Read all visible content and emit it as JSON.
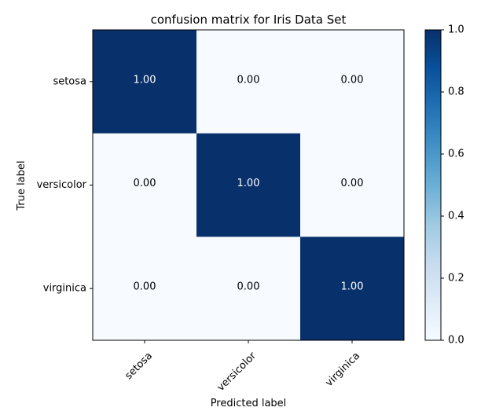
{
  "chart_data": {
    "type": "heatmap",
    "title": "confusion matrix for Iris Data Set",
    "xlabel": "Predicted label",
    "ylabel": "True label",
    "x_categories": [
      "setosa",
      "versicolor",
      "virginica"
    ],
    "y_categories": [
      "setosa",
      "versicolor",
      "virginica"
    ],
    "values": [
      [
        1.0,
        0.0,
        0.0
      ],
      [
        0.0,
        1.0,
        0.0
      ],
      [
        0.0,
        0.0,
        1.0
      ]
    ],
    "cell_labels": [
      [
        "1.00",
        "0.00",
        "0.00"
      ],
      [
        "0.00",
        "1.00",
        "0.00"
      ],
      [
        "0.00",
        "0.00",
        "1.00"
      ]
    ],
    "colormap": "Blues",
    "colorbar": {
      "range": [
        0.0,
        1.0
      ],
      "ticks": [
        "0.0",
        "0.2",
        "0.4",
        "0.6",
        "0.8",
        "1.0"
      ]
    },
    "colors": {
      "low": "#f7fbff",
      "high": "#08306b",
      "label_on_dark": "#ffffff",
      "label_on_light": "#000000"
    }
  }
}
